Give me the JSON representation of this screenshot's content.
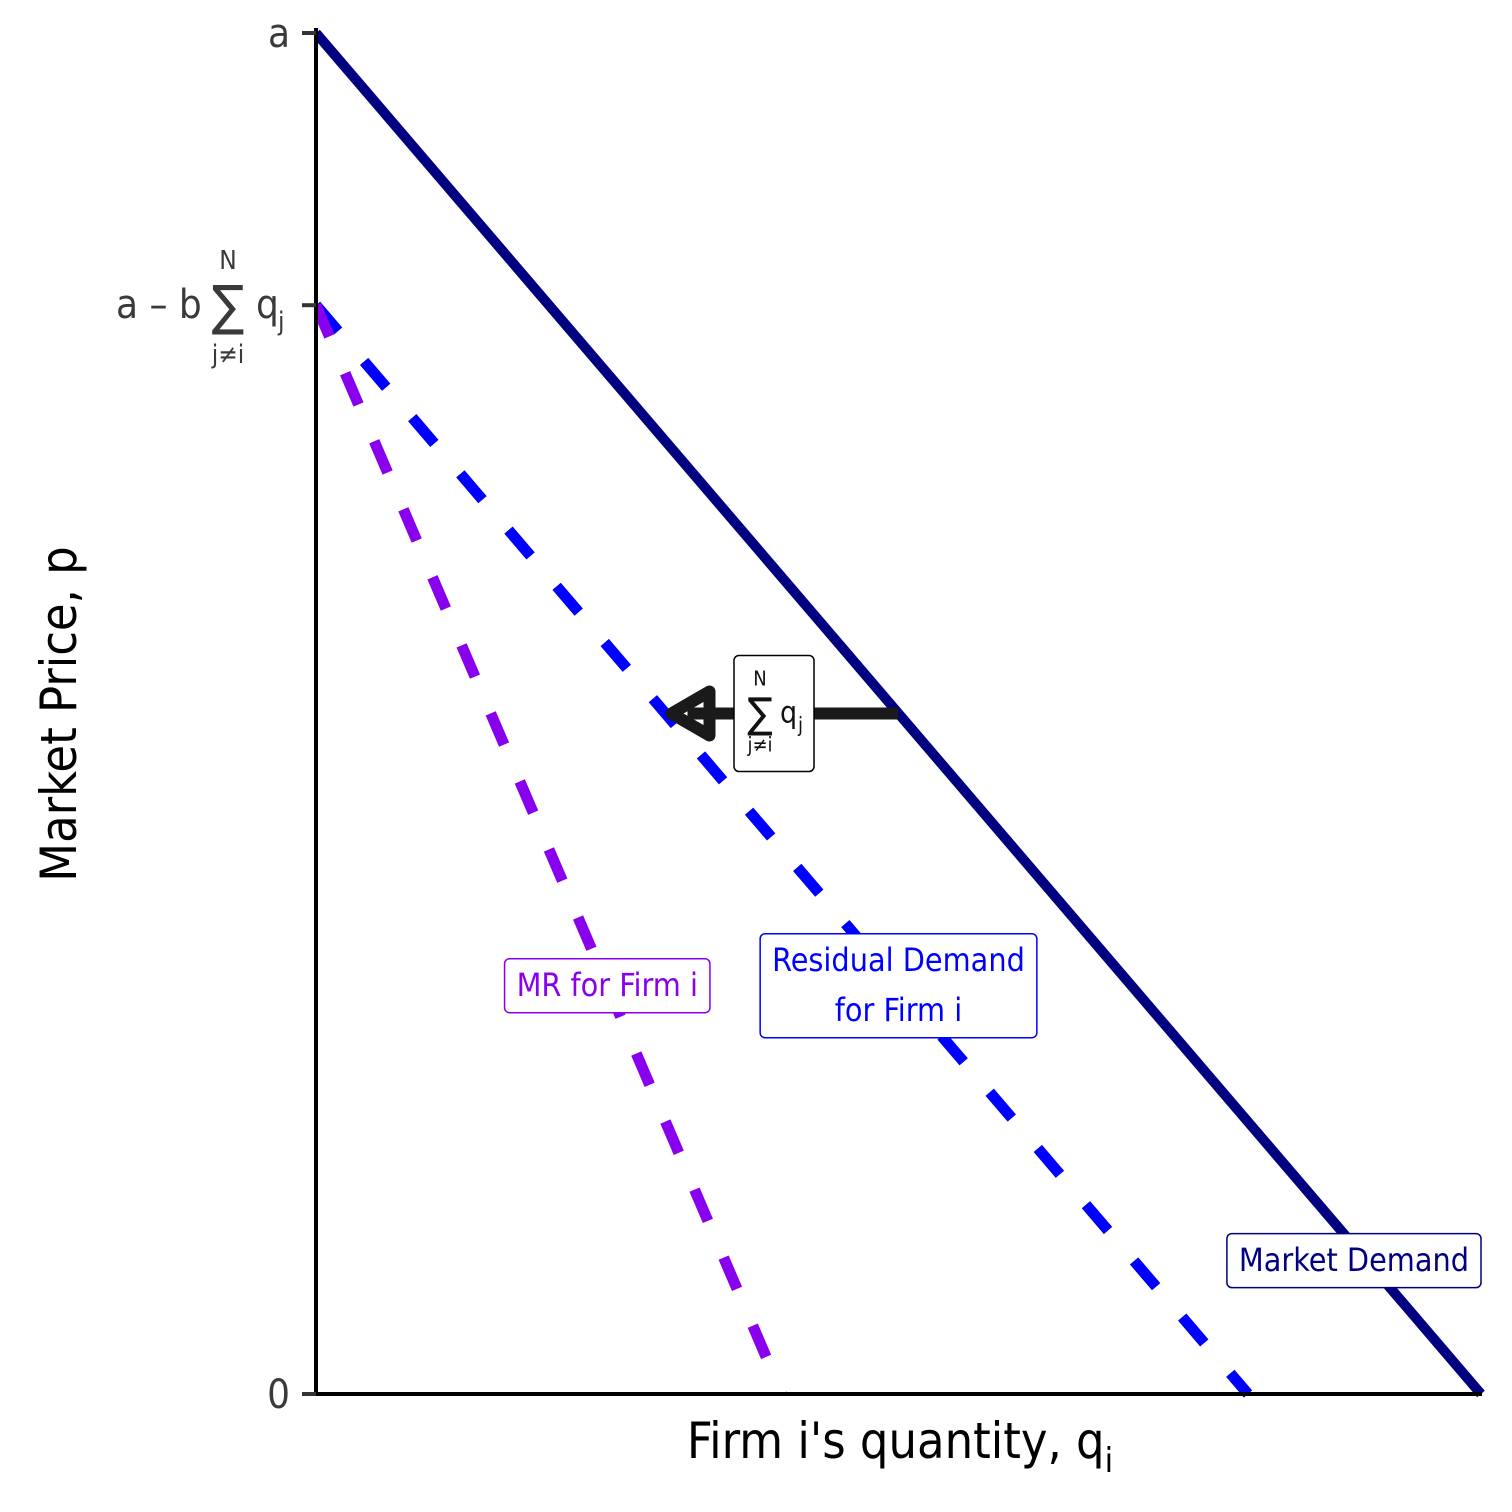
{
  "chart_data": {
    "type": "line",
    "title": "",
    "xlabel": "Firm i's quantity, q",
    "xlabel_sub": "i",
    "ylabel": "Market Price, p",
    "xlim": [
      0,
      1
    ],
    "ylim": [
      0,
      1
    ],
    "y_ticks": [
      {
        "value": 0,
        "label": "0"
      },
      {
        "value": 0.8,
        "label_main": "a – b",
        "label_sigma": "∑",
        "label_top": "N",
        "label_bottom": "j≠i",
        "label_q": "q",
        "label_q_sub": "j"
      },
      {
        "value": 1,
        "label": "a"
      }
    ],
    "series": [
      {
        "name": "Market Demand",
        "style": "solid",
        "color": "#000080",
        "points": [
          [
            0,
            1
          ],
          [
            1,
            0
          ]
        ]
      },
      {
        "name": "Residual Demand for Firm i",
        "style": "dashed",
        "color": "#0000ff",
        "points": [
          [
            0,
            0.8
          ],
          [
            0.8,
            0
          ]
        ]
      },
      {
        "name": "MR for Firm i",
        "style": "dashed",
        "color": "#8800ee",
        "points": [
          [
            0,
            0.8
          ],
          [
            0.4,
            0
          ]
        ]
      }
    ],
    "labels": [
      {
        "series": 0,
        "lines": [
          "Market Demand"
        ],
        "at": [
          0.906,
          0.098
        ],
        "color": "#000080"
      },
      {
        "series": 1,
        "lines": [
          "Residual Demand",
          "for Firm i"
        ],
        "at": [
          0.5,
          0.3
        ],
        "color": "#0000ff"
      },
      {
        "series": 2,
        "lines": [
          "MR for Firm i"
        ],
        "at": [
          0.25,
          0.3
        ],
        "color": "#8800ee"
      }
    ],
    "shift_arrow": {
      "y": 0.5,
      "x_from": 0.5,
      "x_to": 0.3,
      "color": "#1a1a1a",
      "label": {
        "sigma": "∑",
        "top": "N",
        "bottom": "j≠i",
        "q": "q",
        "q_sub": "j"
      }
    }
  }
}
